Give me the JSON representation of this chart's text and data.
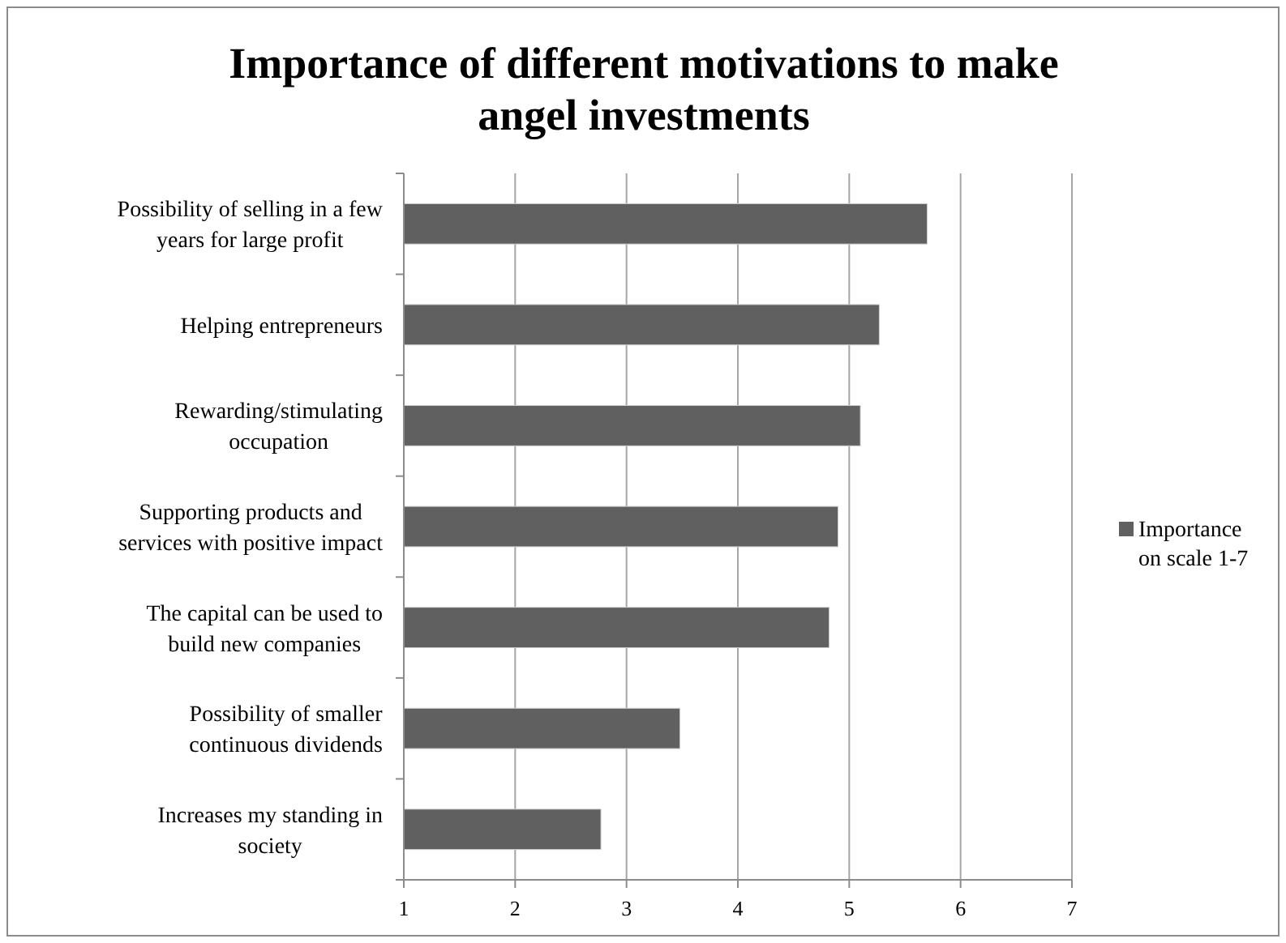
{
  "chart_data": {
    "type": "bar",
    "orientation": "horizontal",
    "title": "Importance of different motivations to make angel investments",
    "categories": [
      "Possibility of selling in a few years for large profit",
      "Helping entrepreneurs",
      "Rewarding/stimulating occupation",
      "Supporting products and services with positive impact",
      "The capital can be used to build new companies",
      "Possibility of smaller continuous dividends",
      "Increases my standing in society"
    ],
    "series": [
      {
        "name": "Importance on scale 1-7",
        "color": "#606060",
        "values": [
          5.7,
          5.27,
          5.1,
          4.9,
          4.82,
          3.48,
          2.77
        ]
      }
    ],
    "xlim": [
      1,
      7
    ],
    "xticks": [
      1,
      2,
      3,
      4,
      5,
      6,
      7
    ],
    "grid": "x",
    "legend": "right"
  }
}
